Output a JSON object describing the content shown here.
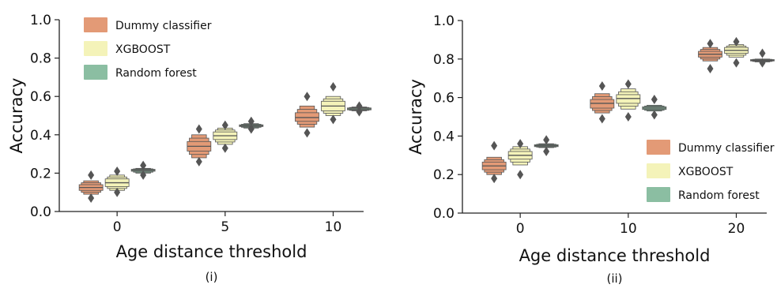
{
  "colors": {
    "dummy": "#e39a76",
    "xgboost": "#f4f3b9",
    "forest": "#8bbea2",
    "outline": "#555555",
    "flier": "#555555"
  },
  "chart_data": [
    {
      "type": "boxenplot",
      "panel_label": "(i)",
      "xlabel": "Age distance threshold",
      "ylabel": "Accuracy",
      "categories": [
        "0",
        "5",
        "10"
      ],
      "ylim": [
        0.0,
        1.0
      ],
      "yticks": [
        "0.0",
        "0.2",
        "0.4",
        "0.6",
        "0.8",
        "1.0"
      ],
      "legend_position": "top-left",
      "series": [
        {
          "name": "Dummy classifier",
          "color_key": "dummy",
          "boxes": [
            {
              "median": 0.125,
              "q1": 0.11,
              "q3": 0.14,
              "lo": 0.09,
              "hi": 0.16,
              "outliers": [
                0.07,
                0.19
              ]
            },
            {
              "median": 0.34,
              "q1": 0.315,
              "q3": 0.365,
              "lo": 0.28,
              "hi": 0.4,
              "outliers": [
                0.26,
                0.43
              ]
            },
            {
              "median": 0.49,
              "q1": 0.47,
              "q3": 0.515,
              "lo": 0.44,
              "hi": 0.55,
              "outliers": [
                0.41,
                0.6
              ]
            }
          ]
        },
        {
          "name": "XGBOOST",
          "color_key": "xgboost",
          "boxes": [
            {
              "median": 0.15,
              "q1": 0.13,
              "q3": 0.17,
              "lo": 0.11,
              "hi": 0.19,
              "outliers": [
                0.1,
                0.21
              ]
            },
            {
              "median": 0.395,
              "q1": 0.375,
              "q3": 0.415,
              "lo": 0.35,
              "hi": 0.435,
              "outliers": [
                0.33,
                0.45
              ]
            },
            {
              "median": 0.55,
              "q1": 0.525,
              "q3": 0.575,
              "lo": 0.5,
              "hi": 0.6,
              "outliers": [
                0.48,
                0.65
              ]
            }
          ]
        },
        {
          "name": "Random forest",
          "color_key": "forest",
          "boxes": [
            {
              "median": 0.215,
              "q1": 0.21,
              "q3": 0.22,
              "lo": 0.2,
              "hi": 0.225,
              "outliers": [
                0.19,
                0.24
              ]
            },
            {
              "median": 0.447,
              "q1": 0.443,
              "q3": 0.452,
              "lo": 0.435,
              "hi": 0.458,
              "outliers": [
                0.43,
                0.47
              ]
            },
            {
              "median": 0.535,
              "q1": 0.53,
              "q3": 0.54,
              "lo": 0.525,
              "hi": 0.545,
              "outliers": [
                0.52,
                0.55
              ]
            }
          ]
        }
      ]
    },
    {
      "type": "boxenplot",
      "panel_label": "(ii)",
      "xlabel": "Age distance threshold",
      "ylabel": "Accuracy",
      "categories": [
        "0",
        "10",
        "20"
      ],
      "ylim": [
        0.0,
        1.0
      ],
      "yticks": [
        "0.0",
        "0.2",
        "0.4",
        "0.6",
        "0.8",
        "1.0"
      ],
      "legend_position": "center-right",
      "series": [
        {
          "name": "Dummy classifier",
          "color_key": "dummy",
          "boxes": [
            {
              "median": 0.245,
              "q1": 0.225,
              "q3": 0.265,
              "lo": 0.2,
              "hi": 0.29,
              "outliers": [
                0.18,
                0.35
              ]
            },
            {
              "median": 0.57,
              "q1": 0.545,
              "q3": 0.59,
              "lo": 0.52,
              "hi": 0.62,
              "outliers": [
                0.49,
                0.66
              ]
            },
            {
              "median": 0.825,
              "q1": 0.81,
              "q3": 0.84,
              "lo": 0.79,
              "hi": 0.86,
              "outliers": [
                0.75,
                0.88
              ]
            }
          ]
        },
        {
          "name": "XGBOOST",
          "color_key": "xgboost",
          "boxes": [
            {
              "median": 0.3,
              "q1": 0.28,
              "q3": 0.32,
              "lo": 0.25,
              "hi": 0.345,
              "outliers": [
                0.2,
                0.36
              ]
            },
            {
              "median": 0.595,
              "q1": 0.57,
              "q3": 0.615,
              "lo": 0.54,
              "hi": 0.645,
              "outliers": [
                0.5,
                0.67
              ]
            },
            {
              "median": 0.845,
              "q1": 0.83,
              "q3": 0.86,
              "lo": 0.81,
              "hi": 0.875,
              "outliers": [
                0.78,
                0.89
              ]
            }
          ]
        },
        {
          "name": "Random forest",
          "color_key": "forest",
          "boxes": [
            {
              "median": 0.35,
              "q1": 0.345,
              "q3": 0.355,
              "lo": 0.34,
              "hi": 0.36,
              "outliers": [
                0.32,
                0.38
              ]
            },
            {
              "median": 0.545,
              "q1": 0.538,
              "q3": 0.552,
              "lo": 0.53,
              "hi": 0.56,
              "outliers": [
                0.51,
                0.59
              ]
            },
            {
              "median": 0.793,
              "q1": 0.79,
              "q3": 0.797,
              "lo": 0.785,
              "hi": 0.8,
              "outliers": [
                0.78,
                0.83
              ]
            }
          ]
        }
      ]
    }
  ]
}
